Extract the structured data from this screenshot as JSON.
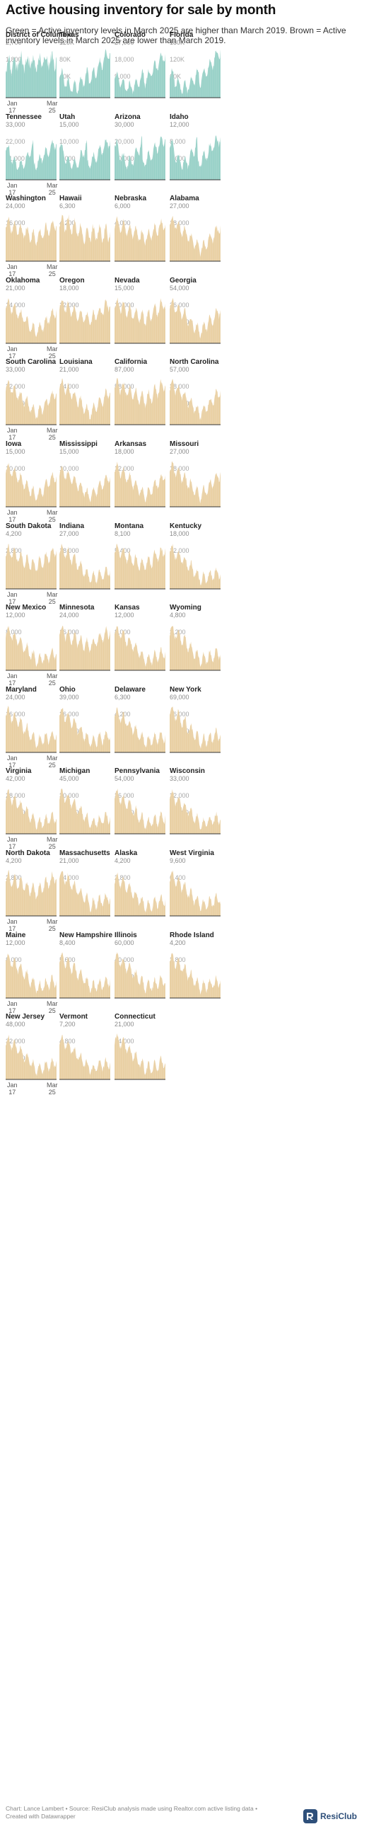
{
  "title": "Active housing inventory for sale by month",
  "subtitle": "Green = Active inventory levels in March 2025 are higher than March 2019. Brown = Active inventory levels in March 2025 are lower than March 2019.",
  "footer": {
    "line1": "Chart: Lance Lambert • Source: ResiClub analysis made using Realtor.com active listing data •",
    "line2": "Created with Datawrapper"
  },
  "brand": "ResiClub",
  "colors": {
    "higher": "#7cc4b8",
    "lower": "#e3c38a",
    "axis": "#333333"
  },
  "x_axis_labels": {
    "start": "Jan\n17",
    "end": "Mar\n25"
  },
  "chart_data": {
    "type": "area",
    "x_range": [
      "2017-01",
      "2025-03"
    ],
    "xlabels": [
      "Jan 17",
      "Mar 25"
    ],
    "grid": false,
    "panels": [
      {
        "state": "District of Columbia",
        "status": "higher",
        "ylim": [
          0,
          2700
        ],
        "yticks": [
          "0",
          "900",
          "1,800",
          "2,700"
        ],
        "shape": "dc",
        "peak": 2500
      },
      {
        "state": "Texas",
        "status": "higher",
        "ylim": [
          0,
          120000
        ],
        "yticks": [
          "0",
          "40K",
          "80K",
          "120K"
        ],
        "shape": "boom",
        "peak": 115000
      },
      {
        "state": "Colorado",
        "status": "higher",
        "ylim": [
          0,
          27000
        ],
        "yticks": [
          "0",
          "9,000",
          "18,000",
          "27,000"
        ],
        "shape": "boom",
        "peak": 24000
      },
      {
        "state": "Florida",
        "status": "higher",
        "ylim": [
          0,
          180000
        ],
        "yticks": [
          "0",
          "60K",
          "120K",
          "180K"
        ],
        "shape": "boom",
        "peak": 172000
      },
      {
        "state": "Tennessee",
        "status": "higher",
        "ylim": [
          0,
          33000
        ],
        "yticks": [
          "0",
          "11,000",
          "22,000",
          "33,000"
        ],
        "shape": "vdip",
        "peak": 26000
      },
      {
        "state": "Utah",
        "status": "higher",
        "ylim": [
          0,
          15000
        ],
        "yticks": [
          "0",
          "5,000",
          "10,000",
          "15,000"
        ],
        "shape": "vdip",
        "peak": 12000
      },
      {
        "state": "Arizona",
        "status": "higher",
        "ylim": [
          0,
          30000
        ],
        "yticks": [
          "0",
          "10,000",
          "20,000",
          "30,000"
        ],
        "shape": "vdip",
        "peak": 26000
      },
      {
        "state": "Idaho",
        "status": "higher",
        "ylim": [
          0,
          12000
        ],
        "yticks": [
          "0",
          "4,000",
          "8,000",
          "12,000"
        ],
        "shape": "vdip",
        "peak": 10500
      },
      {
        "state": "Washington",
        "status": "lower",
        "ylim": [
          0,
          24000
        ],
        "yticks": [
          "0",
          "8,000",
          "16,000",
          "24,000"
        ],
        "shape": "seasonal",
        "peak": 21000
      },
      {
        "state": "Hawaii",
        "status": "lower",
        "ylim": [
          0,
          6300
        ],
        "yticks": [
          "0",
          "2,100",
          "4,200",
          "6,300"
        ],
        "shape": "hawaii",
        "peak": 5800
      },
      {
        "state": "Nebraska",
        "status": "lower",
        "ylim": [
          0,
          6000
        ],
        "yticks": [
          "0",
          "2,000",
          "4,000",
          "6,000"
        ],
        "shape": "seasonal",
        "peak": 5300
      },
      {
        "state": "Alabama",
        "status": "lower",
        "ylim": [
          0,
          27000
        ],
        "yticks": [
          "0",
          "9,000",
          "18,000",
          "27,000"
        ],
        "shape": "u",
        "peak": 24000
      },
      {
        "state": "Oklahoma",
        "status": "lower",
        "ylim": [
          0,
          21000
        ],
        "yticks": [
          "0",
          "7,000",
          "14,000",
          "21,000"
        ],
        "shape": "u",
        "peak": 18500
      },
      {
        "state": "Oregon",
        "status": "lower",
        "ylim": [
          0,
          18000
        ],
        "yticks": [
          "0",
          "6,000",
          "12,000",
          "18,000"
        ],
        "shape": "seasonal",
        "peak": 15500
      },
      {
        "state": "Nevada",
        "status": "lower",
        "ylim": [
          0,
          15000
        ],
        "yticks": [
          "0",
          "5,000",
          "10,000",
          "15,000"
        ],
        "shape": "seasonal",
        "peak": 13500
      },
      {
        "state": "Georgia",
        "status": "lower",
        "ylim": [
          0,
          54000
        ],
        "yticks": [
          "0",
          "18,000",
          "36,000",
          "54,000"
        ],
        "shape": "u",
        "peak": 48000
      },
      {
        "state": "South Carolina",
        "status": "lower",
        "ylim": [
          0,
          33000
        ],
        "yticks": [
          "0",
          "11,000",
          "22,000",
          "33,000"
        ],
        "shape": "u",
        "peak": 29000
      },
      {
        "state": "Louisiana",
        "status": "lower",
        "ylim": [
          0,
          21000
        ],
        "yticks": [
          "0",
          "7,000",
          "14,000",
          "21,000"
        ],
        "shape": "u",
        "peak": 19000
      },
      {
        "state": "California",
        "status": "lower",
        "ylim": [
          0,
          87000
        ],
        "yticks": [
          "0",
          "29,000",
          "58,000",
          "87,000"
        ],
        "shape": "seasonal",
        "peak": 80000
      },
      {
        "state": "North Carolina",
        "status": "lower",
        "ylim": [
          0,
          57000
        ],
        "yticks": [
          "0",
          "19,000",
          "38,000",
          "57,000"
        ],
        "shape": "u",
        "peak": 51000
      },
      {
        "state": "Iowa",
        "status": "lower",
        "ylim": [
          0,
          15000
        ],
        "yticks": [
          "0",
          "5,000",
          "10,000",
          "15,000"
        ],
        "shape": "u",
        "peak": 13000
      },
      {
        "state": "Mississippi",
        "status": "lower",
        "ylim": [
          0,
          15000
        ],
        "yticks": [
          "0",
          "5,000",
          "10,000",
          "15,000"
        ],
        "shape": "u",
        "peak": 12000
      },
      {
        "state": "Arkansas",
        "status": "lower",
        "ylim": [
          0,
          18000
        ],
        "yticks": [
          "0",
          "6,000",
          "12,000",
          "18,000"
        ],
        "shape": "u",
        "peak": 16000
      },
      {
        "state": "Missouri",
        "status": "lower",
        "ylim": [
          0,
          27000
        ],
        "yticks": [
          "0",
          "9,000",
          "18,000",
          "27,000"
        ],
        "shape": "u",
        "peak": 24000
      },
      {
        "state": "South Dakota",
        "status": "lower",
        "ylim": [
          0,
          4200
        ],
        "yticks": [
          "0",
          "1,400",
          "2,800",
          "4,200"
        ],
        "shape": "seasonal",
        "peak": 3700
      },
      {
        "state": "Indiana",
        "status": "lower",
        "ylim": [
          0,
          27000
        ],
        "yticks": [
          "0",
          "9,000",
          "18,000",
          "27,000"
        ],
        "shape": "decline",
        "peak": 24000
      },
      {
        "state": "Montana",
        "status": "lower",
        "ylim": [
          0,
          8100
        ],
        "yticks": [
          "0",
          "2,700",
          "5,400",
          "8,100"
        ],
        "shape": "seasonal",
        "peak": 7200
      },
      {
        "state": "Kentucky",
        "status": "lower",
        "ylim": [
          0,
          18000
        ],
        "yticks": [
          "0",
          "6,000",
          "12,000",
          "18,000"
        ],
        "shape": "decline",
        "peak": 16000
      },
      {
        "state": "New Mexico",
        "status": "lower",
        "ylim": [
          0,
          12000
        ],
        "yticks": [
          "0",
          "4,000",
          "8,000",
          "12,000"
        ],
        "shape": "decline",
        "peak": 10500
      },
      {
        "state": "Minnesota",
        "status": "lower",
        "ylim": [
          0,
          24000
        ],
        "yticks": [
          "0",
          "8,000",
          "16,000",
          "24,000"
        ],
        "shape": "seasonal",
        "peak": 21000
      },
      {
        "state": "Kansas",
        "status": "lower",
        "ylim": [
          0,
          12000
        ],
        "yticks": [
          "0",
          "4,000",
          "8,000",
          "12,000"
        ],
        "shape": "decline",
        "peak": 10500
      },
      {
        "state": "Wyoming",
        "status": "lower",
        "ylim": [
          0,
          4800
        ],
        "yticks": [
          "0",
          "1,600",
          "3,200",
          "4,800"
        ],
        "shape": "decline",
        "peak": 4200
      },
      {
        "state": "Maryland",
        "status": "lower",
        "ylim": [
          0,
          24000
        ],
        "yticks": [
          "0",
          "8,000",
          "16,000",
          "24,000"
        ],
        "shape": "decline",
        "peak": 22000
      },
      {
        "state": "Ohio",
        "status": "lower",
        "ylim": [
          0,
          39000
        ],
        "yticks": [
          "0",
          "13,000",
          "26,000",
          "39,000"
        ],
        "shape": "decline",
        "peak": 34000
      },
      {
        "state": "Delaware",
        "status": "lower",
        "ylim": [
          0,
          6300
        ],
        "yticks": [
          "0",
          "2,100",
          "4,200",
          "6,300"
        ],
        "shape": "decline",
        "peak": 5600
      },
      {
        "state": "New York",
        "status": "lower",
        "ylim": [
          0,
          69000
        ],
        "yticks": [
          "0",
          "23,000",
          "46,000",
          "69,000"
        ],
        "shape": "decline",
        "peak": 62000
      },
      {
        "state": "Virginia",
        "status": "lower",
        "ylim": [
          0,
          42000
        ],
        "yticks": [
          "0",
          "14,000",
          "28,000",
          "42,000"
        ],
        "shape": "decline",
        "peak": 37000
      },
      {
        "state": "Michigan",
        "status": "lower",
        "ylim": [
          0,
          45000
        ],
        "yticks": [
          "0",
          "15,000",
          "30,000",
          "45,000"
        ],
        "shape": "decline",
        "peak": 40000
      },
      {
        "state": "Pennsylvania",
        "status": "lower",
        "ylim": [
          0,
          54000
        ],
        "yticks": [
          "0",
          "18,000",
          "36,000",
          "54,000"
        ],
        "shape": "decline",
        "peak": 48000
      },
      {
        "state": "Wisconsin",
        "status": "lower",
        "ylim": [
          0,
          33000
        ],
        "yticks": [
          "0",
          "11,000",
          "22,000",
          "33,000"
        ],
        "shape": "decline",
        "peak": 29000
      },
      {
        "state": "North Dakota",
        "status": "lower",
        "ylim": [
          0,
          4200
        ],
        "yticks": [
          "0",
          "1,400",
          "2,800",
          "4,200"
        ],
        "shape": "seasonal",
        "peak": 3800
      },
      {
        "state": "Massachusetts",
        "status": "lower",
        "ylim": [
          0,
          21000
        ],
        "yticks": [
          "0",
          "7,000",
          "14,000",
          "21,000"
        ],
        "shape": "decline",
        "peak": 18500
      },
      {
        "state": "Alaska",
        "status": "lower",
        "ylim": [
          0,
          4200
        ],
        "yticks": [
          "0",
          "1,400",
          "2,800",
          "4,200"
        ],
        "shape": "decline",
        "peak": 3600
      },
      {
        "state": "West Virginia",
        "status": "lower",
        "ylim": [
          0,
          9600
        ],
        "yticks": [
          "0",
          "3,200",
          "6,400",
          "9,600"
        ],
        "shape": "decline",
        "peak": 8600
      },
      {
        "state": "Maine",
        "status": "lower",
        "ylim": [
          0,
          12000
        ],
        "yticks": [
          "0",
          "4,000",
          "8,000",
          "12,000"
        ],
        "shape": "decline",
        "peak": 10500
      },
      {
        "state": "New Hampshire",
        "status": "lower",
        "ylim": [
          0,
          8400
        ],
        "yticks": [
          "0",
          "2,800",
          "5,600",
          "8,400"
        ],
        "shape": "decline",
        "peak": 7500
      },
      {
        "state": "Illinois",
        "status": "lower",
        "ylim": [
          0,
          60000
        ],
        "yticks": [
          "0",
          "20,000",
          "40,000",
          "60,000"
        ],
        "shape": "decline",
        "peak": 54000
      },
      {
        "state": "Rhode Island",
        "status": "lower",
        "ylim": [
          0,
          4200
        ],
        "yticks": [
          "0",
          "1,400",
          "2,800",
          "4,200"
        ],
        "shape": "decline",
        "peak": 3700
      },
      {
        "state": "New Jersey",
        "status": "lower",
        "ylim": [
          0,
          48000
        ],
        "yticks": [
          "0",
          "16,000",
          "32,000",
          "48,000"
        ],
        "shape": "decline",
        "peak": 42000
      },
      {
        "state": "Vermont",
        "status": "lower",
        "ylim": [
          0,
          7200
        ],
        "yticks": [
          "0",
          "2,400",
          "4,800",
          "7,200"
        ],
        "shape": "decline",
        "peak": 6300
      },
      {
        "state": "Connecticut",
        "status": "lower",
        "ylim": [
          0,
          21000
        ],
        "yticks": [
          "0",
          "7,000",
          "14,000",
          "21,000"
        ],
        "shape": "decline",
        "peak": 19000
      }
    ]
  }
}
